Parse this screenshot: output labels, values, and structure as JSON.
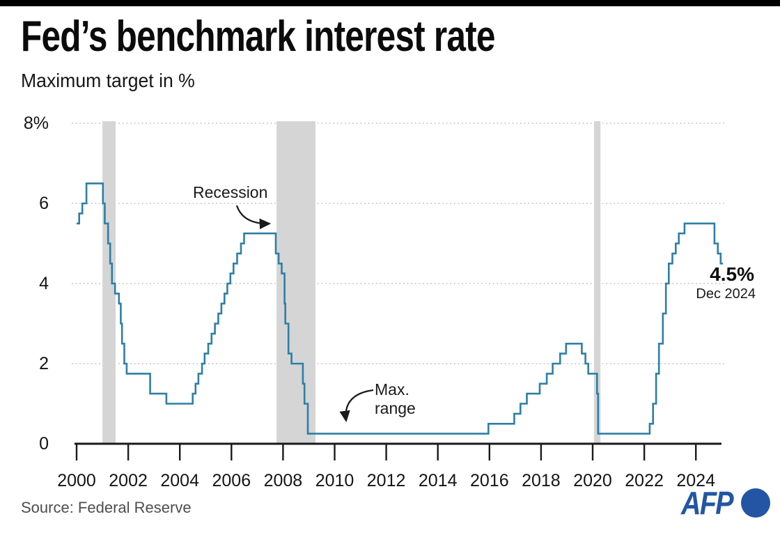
{
  "header": {
    "title": "Fed’s benchmark interest rate",
    "subtitle": "Maximum target in %"
  },
  "chart_data": {
    "type": "line",
    "title": "Fed’s benchmark interest rate",
    "subtitle": "Maximum target in %",
    "ylabel": "Maximum target in %",
    "unit": "%",
    "grid": "horizontal-dotted",
    "legend": "none",
    "xlim": [
      2000,
      2025.05
    ],
    "ylim": [
      0,
      8
    ],
    "x_ticks": [
      2000,
      2002,
      2004,
      2006,
      2008,
      2010,
      2012,
      2014,
      2016,
      2018,
      2020,
      2022,
      2024
    ],
    "y_ticks": [
      {
        "v": 0,
        "label": "0"
      },
      {
        "v": 2,
        "label": "2"
      },
      {
        "v": 4,
        "label": "4"
      },
      {
        "v": 6,
        "label": "6"
      },
      {
        "v": 8,
        "label": "8%"
      }
    ],
    "series": [
      {
        "name": "Fed benchmark interest rate (maximum target, %)",
        "step": true,
        "points": [
          [
            2000.0,
            5.5
          ],
          [
            2000.1,
            5.75
          ],
          [
            2000.22,
            6.0
          ],
          [
            2000.38,
            6.5
          ],
          [
            2001.02,
            6.0
          ],
          [
            2001.09,
            5.5
          ],
          [
            2001.22,
            5.0
          ],
          [
            2001.3,
            4.5
          ],
          [
            2001.37,
            4.0
          ],
          [
            2001.49,
            3.75
          ],
          [
            2001.64,
            3.5
          ],
          [
            2001.71,
            3.0
          ],
          [
            2001.76,
            2.5
          ],
          [
            2001.85,
            2.0
          ],
          [
            2001.94,
            1.75
          ],
          [
            2002.85,
            1.25
          ],
          [
            2003.48,
            1.0
          ],
          [
            2004.5,
            1.25
          ],
          [
            2004.61,
            1.5
          ],
          [
            2004.72,
            1.75
          ],
          [
            2004.86,
            2.0
          ],
          [
            2004.96,
            2.25
          ],
          [
            2005.1,
            2.5
          ],
          [
            2005.23,
            2.75
          ],
          [
            2005.36,
            3.0
          ],
          [
            2005.49,
            3.25
          ],
          [
            2005.61,
            3.5
          ],
          [
            2005.73,
            3.75
          ],
          [
            2005.84,
            4.0
          ],
          [
            2005.96,
            4.25
          ],
          [
            2006.08,
            4.5
          ],
          [
            2006.22,
            4.75
          ],
          [
            2006.37,
            5.0
          ],
          [
            2006.49,
            5.25
          ],
          [
            2007.72,
            4.75
          ],
          [
            2007.83,
            4.5
          ],
          [
            2007.95,
            4.25
          ],
          [
            2008.06,
            3.5
          ],
          [
            2008.09,
            3.0
          ],
          [
            2008.21,
            2.25
          ],
          [
            2008.33,
            2.0
          ],
          [
            2008.77,
            1.5
          ],
          [
            2008.83,
            1.0
          ],
          [
            2008.96,
            0.25
          ],
          [
            2015.96,
            0.5
          ],
          [
            2016.96,
            0.75
          ],
          [
            2017.2,
            1.0
          ],
          [
            2017.45,
            1.25
          ],
          [
            2017.95,
            1.5
          ],
          [
            2018.22,
            1.75
          ],
          [
            2018.45,
            2.0
          ],
          [
            2018.74,
            2.25
          ],
          [
            2018.97,
            2.5
          ],
          [
            2019.58,
            2.25
          ],
          [
            2019.72,
            2.0
          ],
          [
            2019.83,
            1.75
          ],
          [
            2020.17,
            1.25
          ],
          [
            2020.21,
            0.25
          ],
          [
            2022.21,
            0.5
          ],
          [
            2022.34,
            1.0
          ],
          [
            2022.46,
            1.75
          ],
          [
            2022.57,
            2.5
          ],
          [
            2022.72,
            3.25
          ],
          [
            2022.84,
            4.0
          ],
          [
            2022.95,
            4.5
          ],
          [
            2023.09,
            4.75
          ],
          [
            2023.22,
            5.0
          ],
          [
            2023.34,
            5.25
          ],
          [
            2023.56,
            5.5
          ],
          [
            2024.72,
            5.0
          ],
          [
            2024.85,
            4.75
          ],
          [
            2024.96,
            4.5
          ]
        ]
      }
    ],
    "recession_bands": [
      [
        2001.0,
        2001.51
      ],
      [
        2007.75,
        2009.26
      ],
      [
        2020.05,
        2020.3
      ]
    ],
    "annotations": {
      "recession": "Recession",
      "max_range": "Max.\nrange",
      "end_value": "4.5%",
      "end_date": "Dec 2024"
    },
    "end_point": {
      "date": "Dec 2024",
      "value": 4.5
    }
  },
  "colors": {
    "line": "#2d7fa6",
    "recession_band": "#d5d5d5",
    "grid": "#c9c9c9",
    "axis": "#1a1a1a",
    "text": "#151515",
    "source_text": "#4d4d4d",
    "afp_blue": "#2355a4",
    "top_bar": "#000000"
  },
  "footer": {
    "source": "Source: Federal Reserve",
    "logo": "AFP"
  }
}
